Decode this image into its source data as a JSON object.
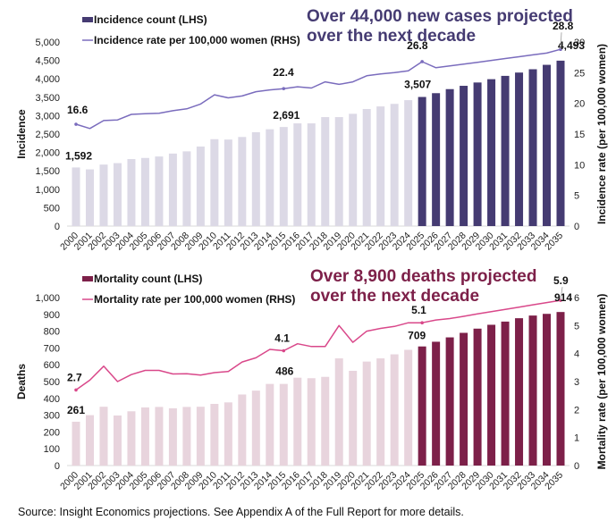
{
  "chart_data": [
    {
      "type": "bar",
      "id": "incidence",
      "title": "Over 44,000 new cases projected over the next decade",
      "title_lines": [
        "Over 44,000 new cases projected",
        "over the next decade"
      ],
      "xlabel": "",
      "ylabel": "Incidence",
      "y2label": "Incidence rate (per 100,000 women)",
      "ylim": [
        0,
        5000
      ],
      "yticks": [
        0,
        500,
        1000,
        1500,
        2000,
        2500,
        3000,
        3500,
        4000,
        4500,
        5000
      ],
      "ytick_labels": [
        "0",
        "500",
        "1,000",
        "1,500",
        "2,000",
        "2,500",
        "3,000",
        "3,500",
        "4,000",
        "4,500",
        "5,000"
      ],
      "y2lim": [
        0,
        30
      ],
      "y2ticks": [
        0,
        5,
        10,
        15,
        20,
        25,
        30
      ],
      "y2tick_labels": [
        "0",
        "5",
        "10",
        "15",
        "20",
        "25",
        "30"
      ],
      "grid": false,
      "legend_position": "top-left",
      "projection_start": "2025",
      "colors": {
        "historic_bar": "#dcd9e6",
        "projected_bar": "#453b72",
        "line": "#7a6cbd",
        "headline": "#453b72",
        "legend_bar": "#453b72"
      },
      "categories": [
        "2000",
        "2001",
        "2002",
        "2003",
        "2004",
        "2005",
        "2006",
        "2007",
        "2008",
        "2009",
        "2010",
        "2011",
        "2012",
        "2013",
        "2014",
        "2015",
        "2016",
        "2017",
        "2018",
        "2019",
        "2020",
        "2021",
        "2022",
        "2023",
        "2024",
        "2025",
        "2026",
        "2027",
        "2028",
        "2029",
        "2030",
        "2031",
        "2032",
        "2033",
        "2034",
        "2035"
      ],
      "series": [
        {
          "name": "Incidence count (LHS)",
          "type": "bar",
          "axis": "left",
          "values": [
            1592,
            1540,
            1670,
            1710,
            1820,
            1850,
            1890,
            1970,
            2030,
            2160,
            2360,
            2350,
            2420,
            2550,
            2630,
            2691,
            2790,
            2790,
            2960,
            2960,
            3050,
            3180,
            3250,
            3320,
            3420,
            3507,
            3610,
            3720,
            3810,
            3900,
            3990,
            4080,
            4170,
            4260,
            4380,
            4493
          ]
        },
        {
          "name": "Incidence rate per 100,000 women (RHS)",
          "type": "line",
          "axis": "right",
          "values": [
            16.6,
            15.9,
            17.2,
            17.3,
            18.2,
            18.3,
            18.4,
            18.8,
            19.1,
            19.9,
            21.4,
            20.9,
            21.2,
            21.9,
            22.2,
            22.4,
            22.7,
            22.5,
            23.5,
            23.1,
            23.5,
            24.5,
            24.8,
            25.0,
            25.3,
            26.8,
            25.8,
            26.1,
            26.4,
            26.7,
            27.0,
            27.3,
            27.6,
            27.9,
            28.2,
            28.8
          ]
        }
      ],
      "annotations": [
        {
          "series": 0,
          "index": 0,
          "text": "1,592"
        },
        {
          "series": 0,
          "index": 15,
          "text": "2,691"
        },
        {
          "series": 0,
          "index": 25,
          "text": "3,507"
        },
        {
          "series": 0,
          "index": 35,
          "text": "4,493"
        },
        {
          "series": 1,
          "index": 0,
          "text": "16.6"
        },
        {
          "series": 1,
          "index": 15,
          "text": "22.4"
        },
        {
          "series": 1,
          "index": 25,
          "text": "26.8"
        },
        {
          "series": 1,
          "index": 35,
          "text": "28.8"
        }
      ]
    },
    {
      "type": "bar",
      "id": "mortality",
      "title": "Over 8,900 deaths projected over the next decade",
      "title_lines": [
        "Over 8,900 deaths projected",
        "over the next decade"
      ],
      "xlabel": "",
      "ylabel": "Deaths",
      "y2label": "Mortality rate (per 100,000 women)",
      "ylim": [
        0,
        1000
      ],
      "yticks": [
        0,
        100,
        200,
        300,
        400,
        500,
        600,
        700,
        800,
        900,
        1000
      ],
      "ytick_labels": [
        "0",
        "100",
        "200",
        "300",
        "400",
        "500",
        "600",
        "700",
        "800",
        "900",
        "1,000"
      ],
      "y2lim": [
        0,
        6
      ],
      "y2ticks": [
        0,
        1,
        2,
        3,
        4,
        5,
        6
      ],
      "y2tick_labels": [
        "0",
        "1",
        "2",
        "3",
        "4",
        "5",
        "6"
      ],
      "grid": false,
      "legend_position": "top-left",
      "projection_start": "2025",
      "colors": {
        "historic_bar": "#e8d4dd",
        "projected_bar": "#7d2049",
        "line": "#d9488a",
        "headline": "#7d2049",
        "legend_bar": "#7d2049"
      },
      "categories": [
        "2000",
        "2001",
        "2002",
        "2003",
        "2004",
        "2005",
        "2006",
        "2007",
        "2008",
        "2009",
        "2010",
        "2011",
        "2012",
        "2013",
        "2014",
        "2015",
        "2016",
        "2017",
        "2018",
        "2019",
        "2020",
        "2021",
        "2022",
        "2023",
        "2024",
        "2025",
        "2026",
        "2027",
        "2028",
        "2029",
        "2030",
        "2031",
        "2032",
        "2033",
        "2034",
        "2035"
      ],
      "series": [
        {
          "name": "Mortality count (LHS)",
          "type": "bar",
          "axis": "left",
          "values": [
            261,
            300,
            350,
            298,
            323,
            346,
            349,
            341,
            349,
            350,
            367,
            376,
            423,
            446,
            486,
            486,
            523,
            520,
            528,
            638,
            564,
            619,
            638,
            662,
            689,
            709,
            737,
            763,
            790,
            815,
            838,
            857,
            877,
            893,
            903,
            914
          ]
        },
        {
          "name": "Mortality rate per 100,000 women (RHS)",
          "type": "line",
          "axis": "right",
          "values": [
            2.7,
            3.05,
            3.55,
            3.0,
            3.25,
            3.4,
            3.4,
            3.27,
            3.28,
            3.23,
            3.32,
            3.36,
            3.7,
            3.85,
            4.15,
            4.1,
            4.35,
            4.25,
            4.25,
            5.0,
            4.4,
            4.8,
            4.9,
            4.97,
            5.1,
            5.1,
            5.2,
            5.25,
            5.33,
            5.42,
            5.5,
            5.58,
            5.66,
            5.74,
            5.82,
            5.9
          ]
        }
      ],
      "annotations": [
        {
          "series": 0,
          "index": 0,
          "text": "261"
        },
        {
          "series": 0,
          "index": 15,
          "text": "486"
        },
        {
          "series": 0,
          "index": 25,
          "text": "709"
        },
        {
          "series": 0,
          "index": 35,
          "text": "914"
        },
        {
          "series": 1,
          "index": 0,
          "text": "2.7"
        },
        {
          "series": 1,
          "index": 15,
          "text": "4.1"
        },
        {
          "series": 1,
          "index": 25,
          "text": "5.1"
        },
        {
          "series": 1,
          "index": 35,
          "text": "5.9"
        }
      ]
    }
  ],
  "source": "Source: Insight Economics projections. See Appendix A of the Full Report for more details."
}
